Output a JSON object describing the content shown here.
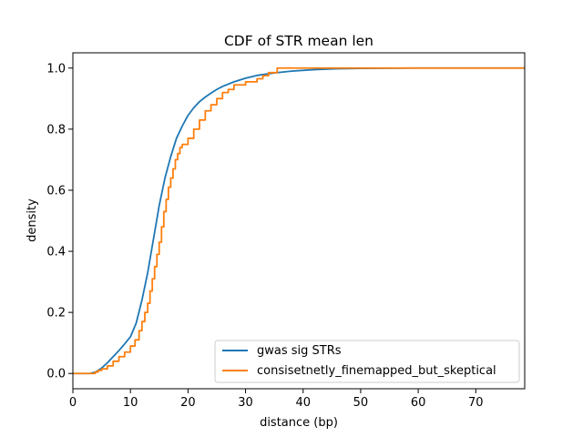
{
  "chart_data": {
    "type": "line",
    "title": "CDF of STR mean len",
    "xlabel": "distance (bp)",
    "ylabel": "density",
    "xlim": [
      0,
      78.5
    ],
    "ylim": [
      -0.05,
      1.05
    ],
    "xticks": [
      0,
      10,
      20,
      30,
      40,
      50,
      60,
      70
    ],
    "yticks": [
      0.0,
      0.2,
      0.4,
      0.6,
      0.8,
      1.0
    ],
    "xtick_labels": [
      "0",
      "10",
      "20",
      "30",
      "40",
      "50",
      "60",
      "70"
    ],
    "ytick_labels": [
      "0.0",
      "0.2",
      "0.4",
      "0.6",
      "0.8",
      "1.0"
    ],
    "grid": false,
    "legend": "lower-right",
    "series": [
      {
        "name": "gwas sig STRs",
        "color": "#1f77b4",
        "step": false,
        "x": [
          0,
          3,
          4,
          5,
          6,
          7,
          8,
          9,
          10,
          11,
          12,
          13,
          14,
          15,
          16,
          17,
          18,
          19,
          20,
          21,
          22,
          23,
          24,
          25,
          26,
          28,
          30,
          32,
          35,
          38,
          42,
          46,
          50,
          60,
          78.5
        ],
        "y": [
          0.0,
          0.0,
          0.005,
          0.018,
          0.035,
          0.055,
          0.075,
          0.097,
          0.12,
          0.165,
          0.24,
          0.33,
          0.44,
          0.55,
          0.64,
          0.71,
          0.77,
          0.81,
          0.845,
          0.87,
          0.89,
          0.905,
          0.918,
          0.93,
          0.94,
          0.955,
          0.967,
          0.976,
          0.984,
          0.99,
          0.995,
          0.998,
          0.999,
          1.0,
          1.0
        ]
      },
      {
        "name": "consisetnetly_finemapped_but_skeptical",
        "color": "#ff7f0e",
        "step": true,
        "x": [
          0,
          3.9,
          4.4,
          5,
          6,
          7,
          8,
          9,
          10,
          10.8,
          11.5,
          12,
          12.5,
          13,
          13.4,
          13.8,
          14.2,
          14.6,
          15,
          15.4,
          15.8,
          16.2,
          16.6,
          17,
          17.4,
          17.8,
          18.2,
          18.6,
          19,
          20,
          21,
          22,
          23,
          24,
          25,
          26,
          27,
          28,
          30,
          32,
          33,
          34,
          35.5,
          78.5
        ],
        "y": [
          0.0,
          0.005,
          0.01,
          0.015,
          0.025,
          0.04,
          0.055,
          0.07,
          0.09,
          0.11,
          0.14,
          0.17,
          0.2,
          0.23,
          0.27,
          0.31,
          0.35,
          0.39,
          0.43,
          0.48,
          0.53,
          0.57,
          0.61,
          0.64,
          0.67,
          0.7,
          0.72,
          0.74,
          0.75,
          0.77,
          0.8,
          0.83,
          0.86,
          0.88,
          0.9,
          0.92,
          0.93,
          0.945,
          0.955,
          0.965,
          0.975,
          0.985,
          1.0,
          1.0
        ]
      }
    ]
  }
}
